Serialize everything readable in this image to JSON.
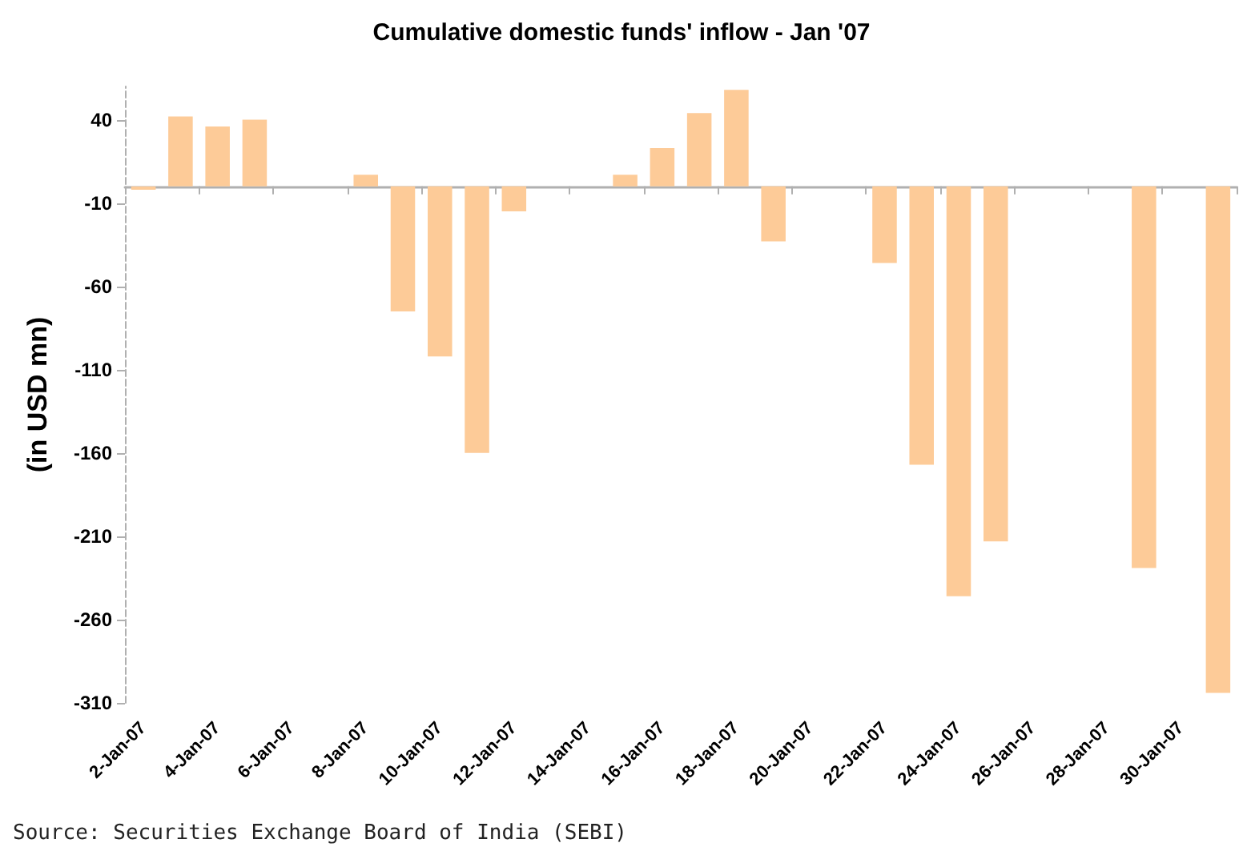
{
  "chart_data": {
    "type": "bar",
    "title": "Cumulative domestic funds' inflow - Jan '07",
    "ylabel": "(in USD mn)",
    "categories": [
      "2-Jan-07",
      null,
      "4-Jan-07",
      null,
      "6-Jan-07",
      null,
      "8-Jan-07",
      null,
      "10-Jan-07",
      null,
      "12-Jan-07",
      null,
      "14-Jan-07",
      null,
      "16-Jan-07",
      null,
      "18-Jan-07",
      null,
      "20-Jan-07",
      null,
      "22-Jan-07",
      null,
      "24-Jan-07",
      null,
      "26-Jan-07",
      null,
      "28-Jan-07",
      null,
      "30-Jan-07",
      null
    ],
    "values": [
      -2,
      42,
      36,
      40,
      null,
      null,
      7,
      -75,
      -102,
      -160,
      -15,
      null,
      null,
      7,
      23,
      44,
      58,
      -33,
      null,
      null,
      -46,
      -167,
      -246,
      -213,
      null,
      null,
      null,
      -229,
      null,
      -304
    ],
    "color": "#fdcb98",
    "ylim": [
      -310,
      60
    ],
    "yticks": [
      -310,
      -260,
      -210,
      -160,
      -110,
      -60,
      -10,
      40
    ],
    "grid": false,
    "annotations": [
      "Source: Securities Exchange Board of India (SEBI)"
    ]
  }
}
